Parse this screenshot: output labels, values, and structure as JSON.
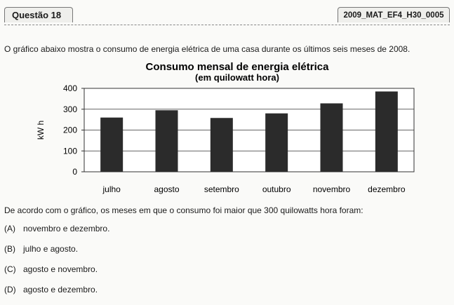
{
  "header": {
    "question_label": "Questão 18",
    "code": "2009_MAT_EF4_H30_0005"
  },
  "intro": "O gráfico abaixo mostra o consumo de energia elétrica de uma casa durante os últimos seis meses de 2008.",
  "chart_data": {
    "type": "bar",
    "title": "Consumo mensal de energia elétrica",
    "subtitle": "(em quilowatt hora)",
    "ylabel": "kW h",
    "xlabel": "",
    "categories": [
      "julho",
      "agosto",
      "setembro",
      "outubro",
      "novembro",
      "dezembro"
    ],
    "values": [
      260,
      295,
      258,
      280,
      328,
      385
    ],
    "ylim": [
      0,
      400
    ],
    "yticks": [
      0,
      100,
      200,
      300,
      400
    ],
    "grid": true,
    "bar_color": "#2b2b2b"
  },
  "question": "De acordo com o gráfico, os meses em que o consumo foi maior que 300 quilowatts hora foram:",
  "options": [
    {
      "letter": "(A)",
      "text": "novembro e dezembro."
    },
    {
      "letter": "(B)",
      "text": "julho e agosto."
    },
    {
      "letter": "(C)",
      "text": "agosto e novembro."
    },
    {
      "letter": "(D)",
      "text": "agosto e dezembro."
    }
  ]
}
